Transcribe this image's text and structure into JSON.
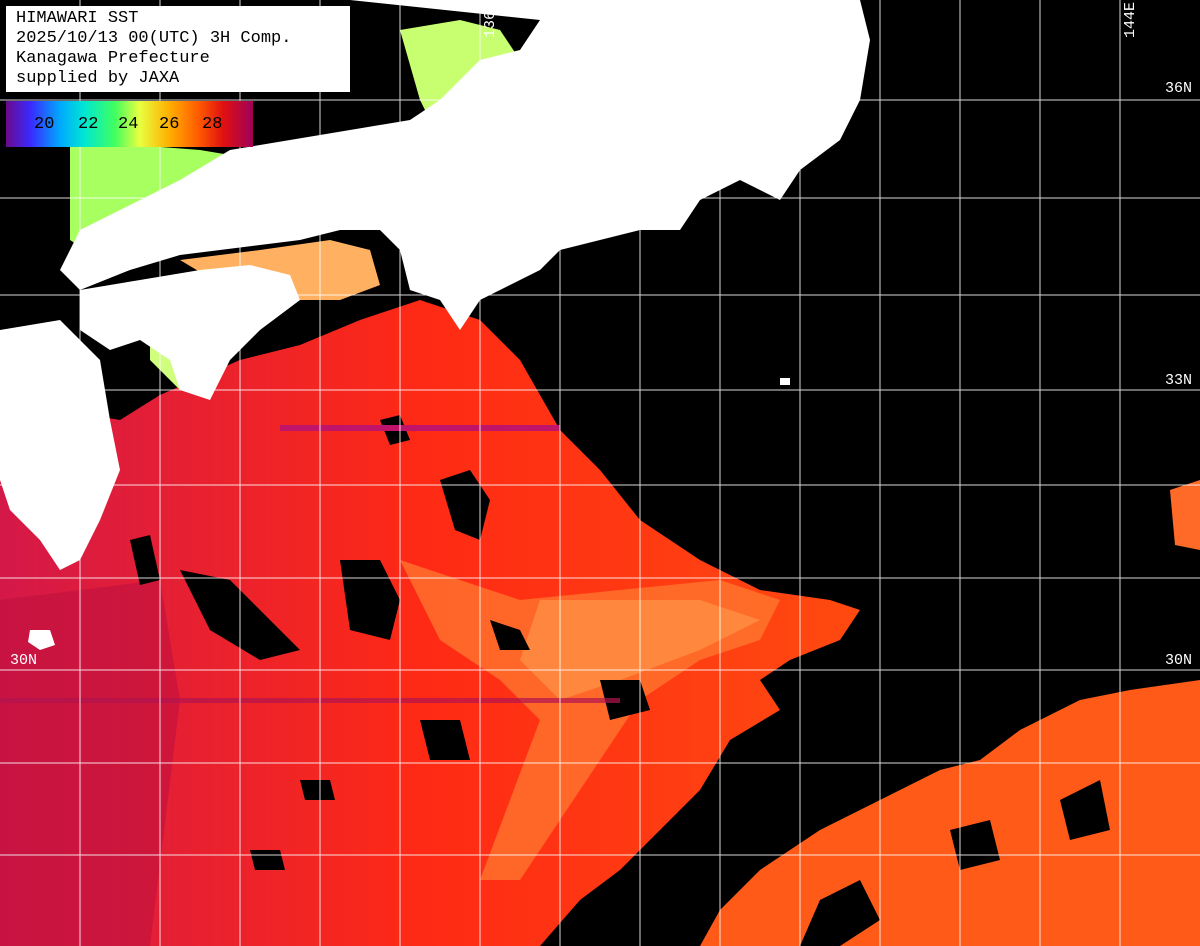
{
  "title": {
    "line1": "HIMAWARI SST",
    "line2": "2025/10/13 00(UTC) 3H Comp.",
    "line3": "Kanagawa Prefecture",
    "line4": "supplied by JAXA"
  },
  "colorbar": {
    "ticks": [
      "20",
      "22",
      "24",
      "26",
      "28"
    ]
  },
  "grid_labels": {
    "lat_36": "36N",
    "lat_33": "33N",
    "lat_30_left": "30N",
    "lat_30_right": "30N",
    "lon_136": "136E",
    "lon_144": "144E"
  },
  "colors": {
    "land": "#ffffff",
    "cloud_mask": "#000000",
    "sst_warm": "#ff3a10",
    "sst_hot": "#c8142a",
    "sst_cool": "#ff9a30",
    "coastal": "#a8ff60",
    "grid": "#ffffff"
  }
}
